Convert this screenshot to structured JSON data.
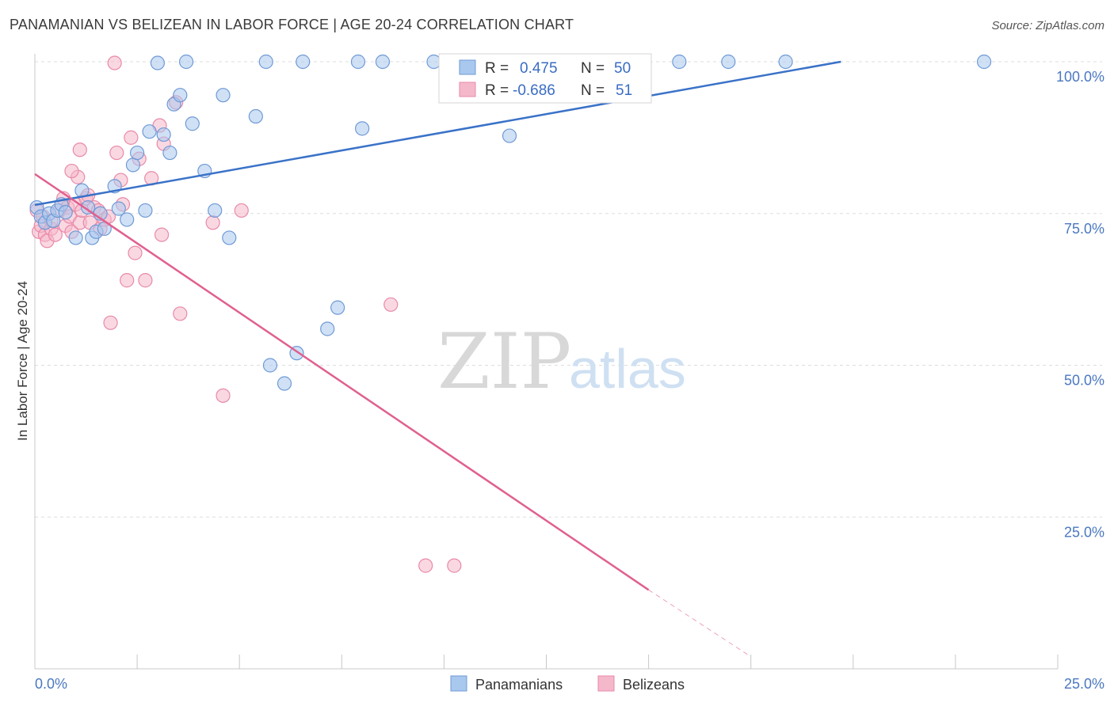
{
  "header": {
    "title": "PANAMANIAN VS BELIZEAN IN LABOR FORCE | AGE 20-24 CORRELATION CHART",
    "source": "Source: ZipAtlas.com"
  },
  "watermark": {
    "zip": "ZIP",
    "atlas": "atlas"
  },
  "legend_box": {
    "r_label": "R =",
    "n_label": "N =",
    "blue": {
      "r": "0.475",
      "n": "50"
    },
    "pink": {
      "r": "-0.686",
      "n": "51"
    }
  },
  "bottom_legend": {
    "blue": "Panamanians",
    "pink": "Belizeans"
  },
  "colors": {
    "blue_fill": "#a9c8ee",
    "blue_stroke": "#6f9ad6",
    "blue_line": "#3a72c8",
    "pink_fill": "#f5b8cb",
    "pink_stroke": "#e88aa8",
    "pink_line": "#e0608f",
    "tick_text": "#4a78c0",
    "grid": "#dddddd"
  },
  "chart_data": {
    "type": "scatter",
    "title": "PANAMANIAN VS BELIZEAN IN LABOR FORCE | AGE 20-24 CORRELATION CHART",
    "xlabel": "",
    "ylabel": "In Labor Force | Age 20-24",
    "xlim": [
      0,
      25
    ],
    "ylim": [
      0,
      100
    ],
    "x_tick_labels": [
      "0.0%",
      "25.0%"
    ],
    "y_ticks": [
      25,
      50,
      75,
      100
    ],
    "y_tick_labels": [
      "25.0%",
      "50.0%",
      "75.0%",
      "100.0%"
    ],
    "grid": "horizontal dashed",
    "series": [
      {
        "name": "Panamanians",
        "r": 0.475,
        "n": 50,
        "trend": {
          "x": [
            0,
            19.7
          ],
          "y": [
            76.4,
            100
          ]
        },
        "points": [
          [
            0.05,
            76.0
          ],
          [
            0.15,
            74.5
          ],
          [
            0.25,
            73.5
          ],
          [
            0.35,
            75.0
          ],
          [
            0.45,
            73.8
          ],
          [
            0.55,
            75.5
          ],
          [
            0.65,
            76.5
          ],
          [
            0.75,
            75.2
          ],
          [
            1.0,
            71.0
          ],
          [
            1.15,
            78.8
          ],
          [
            1.3,
            76.0
          ],
          [
            1.4,
            71.0
          ],
          [
            1.5,
            72.0
          ],
          [
            1.6,
            75.0
          ],
          [
            1.7,
            72.5
          ],
          [
            1.95,
            79.5
          ],
          [
            2.05,
            75.8
          ],
          [
            2.25,
            74.0
          ],
          [
            2.4,
            83.0
          ],
          [
            2.5,
            85.0
          ],
          [
            2.7,
            75.5
          ],
          [
            2.8,
            88.5
          ],
          [
            3.0,
            99.8
          ],
          [
            3.15,
            88.0
          ],
          [
            3.3,
            85.0
          ],
          [
            3.4,
            93.0
          ],
          [
            3.55,
            94.5
          ],
          [
            3.7,
            100.0
          ],
          [
            3.85,
            89.8
          ],
          [
            4.15,
            82.0
          ],
          [
            4.4,
            75.5
          ],
          [
            4.6,
            94.5
          ],
          [
            4.75,
            71.0
          ],
          [
            5.4,
            91.0
          ],
          [
            5.65,
            100.0
          ],
          [
            5.75,
            50.0
          ],
          [
            6.1,
            47.0
          ],
          [
            6.4,
            52.0
          ],
          [
            6.55,
            100.0
          ],
          [
            7.15,
            56.0
          ],
          [
            7.4,
            59.5
          ],
          [
            7.9,
            100.0
          ],
          [
            8.0,
            89.0
          ],
          [
            8.5,
            100.0
          ],
          [
            9.75,
            100.0
          ],
          [
            11.6,
            87.8
          ],
          [
            15.75,
            100.0
          ],
          [
            16.95,
            100.0
          ],
          [
            18.35,
            100.0
          ],
          [
            23.2,
            100.0
          ]
        ]
      },
      {
        "name": "Belizeans",
        "r": -0.686,
        "n": 51,
        "trend": {
          "x": [
            0,
            15.0
          ],
          "y": [
            81.5,
            13.0
          ]
        },
        "trend_dashed": {
          "x": [
            15.0,
            17.5
          ],
          "y": [
            13.0,
            2.0
          ]
        },
        "points": [
          [
            0.05,
            75.5
          ],
          [
            0.1,
            72.0
          ],
          [
            0.15,
            73.0
          ],
          [
            0.2,
            74.5
          ],
          [
            0.25,
            71.5
          ],
          [
            0.3,
            70.5
          ],
          [
            0.4,
            72.5
          ],
          [
            0.5,
            71.5
          ],
          [
            0.6,
            75.5
          ],
          [
            0.7,
            77.5
          ],
          [
            0.75,
            73.0
          ],
          [
            0.8,
            76.0
          ],
          [
            0.85,
            74.5
          ],
          [
            0.9,
            72.0
          ],
          [
            1.0,
            76.5
          ],
          [
            1.05,
            81.0
          ],
          [
            1.1,
            73.5
          ],
          [
            1.15,
            75.5
          ],
          [
            1.25,
            77.5
          ],
          [
            1.3,
            78.0
          ],
          [
            1.35,
            73.5
          ],
          [
            1.45,
            76.0
          ],
          [
            1.55,
            75.5
          ],
          [
            1.6,
            72.5
          ],
          [
            1.7,
            74.0
          ],
          [
            1.8,
            74.5
          ],
          [
            1.95,
            99.8
          ],
          [
            2.0,
            85.0
          ],
          [
            2.1,
            80.5
          ],
          [
            2.15,
            76.5
          ],
          [
            2.25,
            64.0
          ],
          [
            2.35,
            87.5
          ],
          [
            2.45,
            68.5
          ],
          [
            2.55,
            84.0
          ],
          [
            2.7,
            64.0
          ],
          [
            2.85,
            80.8
          ],
          [
            3.05,
            89.5
          ],
          [
            3.1,
            71.5
          ],
          [
            3.15,
            86.5
          ],
          [
            3.45,
            93.3
          ],
          [
            3.55,
            58.5
          ],
          [
            4.35,
            73.5
          ],
          [
            4.6,
            45.0
          ],
          [
            5.05,
            75.5
          ],
          [
            8.7,
            60.0
          ],
          [
            9.55,
            17.0
          ],
          [
            10.25,
            17.0
          ],
          [
            1.85,
            57.0
          ],
          [
            1.1,
            85.5
          ],
          [
            0.9,
            82.0
          ],
          [
            0.4,
            73.8
          ]
        ]
      }
    ]
  }
}
